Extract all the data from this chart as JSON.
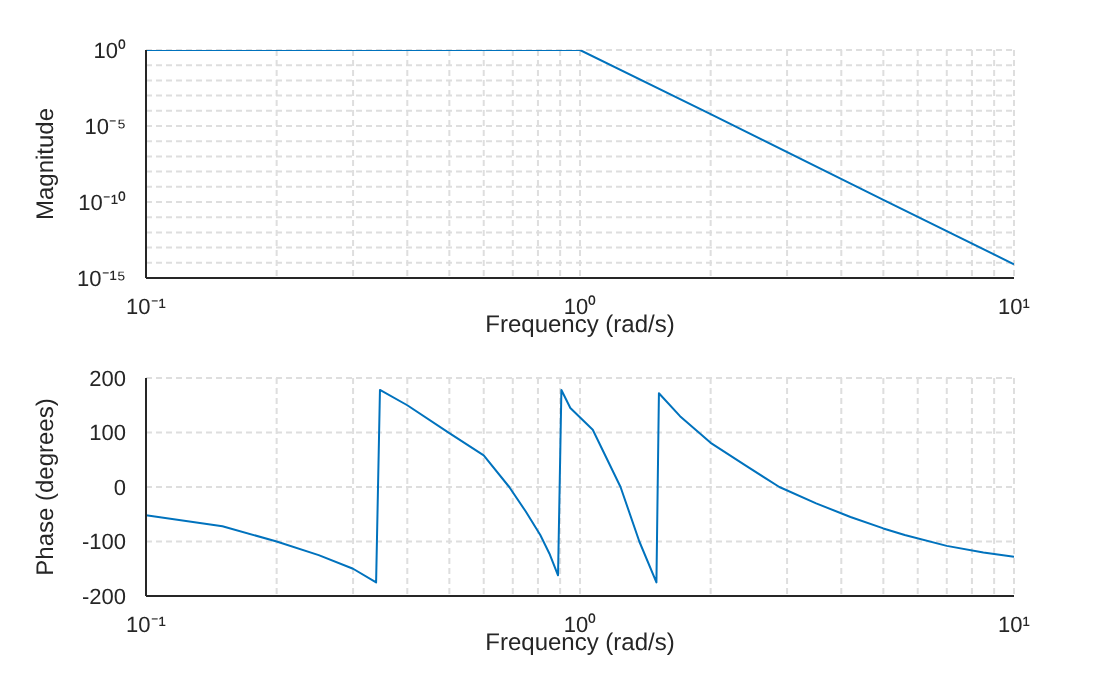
{
  "chart_data": [
    {
      "type": "line",
      "xlabel": "Frequency (rad/s)",
      "ylabel": "Magnitude",
      "log": "xy",
      "grid": true,
      "line_style": "solid",
      "marker": "none",
      "x": [
        0.1,
        0.5,
        1,
        2,
        5,
        10
      ],
      "series": [
        {
          "color": "#0072bd",
          "values": [
            1,
            1,
            1,
            6e-05,
            1.4e-10,
            8e-15
          ]
        }
      ],
      "xlim": [
        0.1,
        10
      ],
      "xticks": [
        {
          "value": 0.1,
          "label": "10⁻¹"
        },
        {
          "value": 0.2,
          "label": null
        },
        {
          "value": 0.3,
          "label": null
        },
        {
          "value": 0.4,
          "label": null
        },
        {
          "value": 0.5,
          "label": null
        },
        {
          "value": 0.6,
          "label": null
        },
        {
          "value": 0.7,
          "label": null
        },
        {
          "value": 0.8,
          "label": null
        },
        {
          "value": 0.9,
          "label": null
        },
        {
          "value": 1,
          "label": "10⁰"
        },
        {
          "value": 2,
          "label": null
        },
        {
          "value": 3,
          "label": null
        },
        {
          "value": 4,
          "label": null
        },
        {
          "value": 5,
          "label": null
        },
        {
          "value": 6,
          "label": null
        },
        {
          "value": 7,
          "label": null
        },
        {
          "value": 8,
          "label": null
        },
        {
          "value": 9,
          "label": null
        },
        {
          "value": 10,
          "label": "10¹"
        }
      ],
      "ylim": [
        1e-15,
        1
      ],
      "yticks": [
        {
          "value": 1e-15,
          "label": "10⁻¹⁵"
        },
        {
          "value": 1e-14,
          "label": null
        },
        {
          "value": 1e-13,
          "label": null
        },
        {
          "value": 1e-12,
          "label": null
        },
        {
          "value": 1e-11,
          "label": null
        },
        {
          "value": 1e-10,
          "label": "10⁻¹⁰"
        },
        {
          "value": 1e-09,
          "label": null
        },
        {
          "value": 1e-08,
          "label": null
        },
        {
          "value": 1e-07,
          "label": null
        },
        {
          "value": 1e-06,
          "label": null
        },
        {
          "value": 1e-05,
          "label": "10⁻⁵"
        },
        {
          "value": 0.0001,
          "label": null
        },
        {
          "value": 0.001,
          "label": null
        },
        {
          "value": 0.01,
          "label": null
        },
        {
          "value": 0.1,
          "label": null
        },
        {
          "value": 1,
          "label": "10⁰"
        }
      ]
    },
    {
      "type": "line",
      "xlabel": "Frequency (rad/s)",
      "ylabel": "Phase (degrees)",
      "log": "x",
      "grid": true,
      "line_style": "solid",
      "marker": "none",
      "x": [
        0.1,
        0.15,
        0.2,
        0.25,
        0.3,
        0.339,
        0.346,
        0.4,
        0.5,
        0.6,
        0.687,
        0.75,
        0.81,
        0.85,
        0.89,
        0.906,
        0.95,
        1.07,
        1.24,
        1.37,
        1.5,
        1.52,
        1.7,
        2,
        2.4,
        2.88,
        3.5,
        4.2,
        5,
        5.6,
        7,
        8.5,
        10
      ],
      "series": [
        {
          "color": "#0072bd",
          "values": [
            -52,
            -72,
            -100,
            -125,
            -150,
            -175,
            178,
            150,
            99,
            58,
            0,
            -45,
            -88,
            -122,
            -162,
            178,
            145,
            105,
            0,
            -100,
            -175,
            172,
            130,
            81,
            40,
            0,
            -30,
            -55,
            -76,
            -88,
            -108,
            -120,
            -128
          ]
        }
      ],
      "xlim": [
        0.1,
        10
      ],
      "xticks": [
        {
          "value": 0.1,
          "label": "10⁻¹"
        },
        {
          "value": 0.2,
          "label": null
        },
        {
          "value": 0.3,
          "label": null
        },
        {
          "value": 0.4,
          "label": null
        },
        {
          "value": 0.5,
          "label": null
        },
        {
          "value": 0.6,
          "label": null
        },
        {
          "value": 0.7,
          "label": null
        },
        {
          "value": 0.8,
          "label": null
        },
        {
          "value": 0.9,
          "label": null
        },
        {
          "value": 1,
          "label": "10⁰"
        },
        {
          "value": 2,
          "label": null
        },
        {
          "value": 3,
          "label": null
        },
        {
          "value": 4,
          "label": null
        },
        {
          "value": 5,
          "label": null
        },
        {
          "value": 6,
          "label": null
        },
        {
          "value": 7,
          "label": null
        },
        {
          "value": 8,
          "label": null
        },
        {
          "value": 9,
          "label": null
        },
        {
          "value": 10,
          "label": "10¹"
        }
      ],
      "ylim": [
        -200,
        200
      ],
      "yticks": [
        -200,
        -100,
        0,
        100,
        200
      ]
    }
  ]
}
